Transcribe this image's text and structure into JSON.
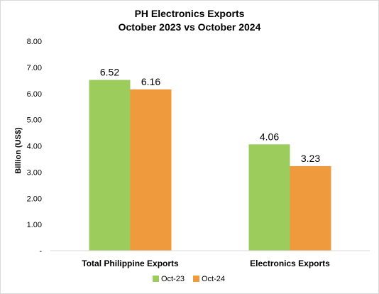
{
  "chart_data": {
    "type": "bar",
    "title_lines": [
      "PH Electronics Exports",
      "October 2023 vs October 2024"
    ],
    "ylabel": "Billion (US$)",
    "xlabel": "",
    "categories": [
      "Total Philippine Exports",
      "Electronics Exports"
    ],
    "series": [
      {
        "name": "Oct-23",
        "color": "#9bcc5c",
        "values": [
          6.52,
          4.06
        ]
      },
      {
        "name": "Oct-24",
        "color": "#f09a3e",
        "values": [
          6.16,
          3.23
        ]
      }
    ],
    "ylim": [
      0,
      8
    ],
    "yticks": [
      0,
      1,
      2,
      3,
      4,
      5,
      6,
      7,
      8
    ],
    "ytick_labels": [
      "-",
      "1.00",
      "2.00",
      "3.00",
      "4.00",
      "5.00",
      "6.00",
      "7.00",
      "8.00"
    ],
    "data_labels": [
      [
        "6.52",
        "4.06"
      ],
      [
        "6.16",
        "3.23"
      ]
    ],
    "grid": false,
    "legend_position": "bottom"
  }
}
